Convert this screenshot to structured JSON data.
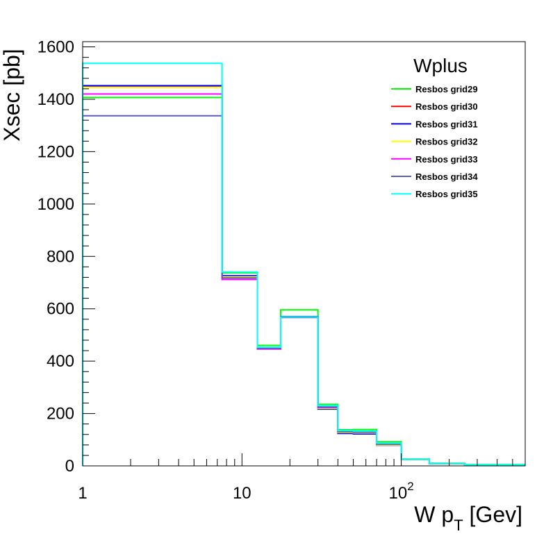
{
  "chart_data": {
    "type": "line",
    "title": "Wplus",
    "xlabel_main": "W p",
    "xlabel_sub": "T",
    "xlabel_unit": " [Gev]",
    "ylabel": "Xsec [pb]",
    "xscale": "log",
    "xlim": [
      1,
      600
    ],
    "ylim": [
      0,
      1620
    ],
    "legend_position": "top-right",
    "yticks": [
      0,
      200,
      400,
      600,
      800,
      1000,
      1200,
      1400,
      1600
    ],
    "ytick_labels": [
      "0",
      "200",
      "400",
      "600",
      "800",
      "1000",
      "1200",
      "1400",
      "1600"
    ],
    "xtick_labels": [
      {
        "value": 1,
        "base": "1",
        "exp": ""
      },
      {
        "value": 10,
        "base": "10",
        "exp": ""
      },
      {
        "value": 100,
        "base": "10",
        "exp": "2"
      }
    ],
    "bin_edges": [
      1,
      7.5,
      12.5,
      17.5,
      30,
      40,
      50,
      70,
      100,
      150,
      250,
      600
    ],
    "series": [
      {
        "name": "Resbos grid29",
        "color": "#00ff00",
        "values": [
          1407,
          737,
          460,
          596,
          235,
          138,
          139,
          92,
          26,
          10,
          5
        ]
      },
      {
        "name": "Resbos grid30",
        "color": "#ff0000",
        "values": [
          1446,
          723,
          452,
          568,
          220,
          128,
          126,
          80,
          24,
          9,
          4
        ]
      },
      {
        "name": "Resbos grid31",
        "color": "#0000ff",
        "values": [
          1452,
          726,
          452,
          570,
          217,
          124,
          122,
          79,
          24,
          9,
          4
        ]
      },
      {
        "name": "Resbos grid32",
        "color": "#ffff00",
        "values": [
          1445,
          722,
          451,
          568,
          220,
          128,
          126,
          80,
          24,
          9,
          4
        ]
      },
      {
        "name": "Resbos grid33",
        "color": "#ff00ff",
        "values": [
          1420,
          712,
          446,
          567,
          223,
          131,
          129,
          83,
          25,
          9,
          4
        ]
      },
      {
        "name": "Resbos grid34",
        "color": "#5b5bb8",
        "values": [
          1337,
          718,
          449,
          567,
          225,
          131,
          129,
          83,
          25,
          9,
          4
        ]
      },
      {
        "name": "Resbos grid35",
        "color": "#00ffff",
        "values": [
          1537,
          740,
          453,
          569,
          230,
          135,
          133,
          87,
          25,
          9,
          4
        ]
      }
    ]
  }
}
